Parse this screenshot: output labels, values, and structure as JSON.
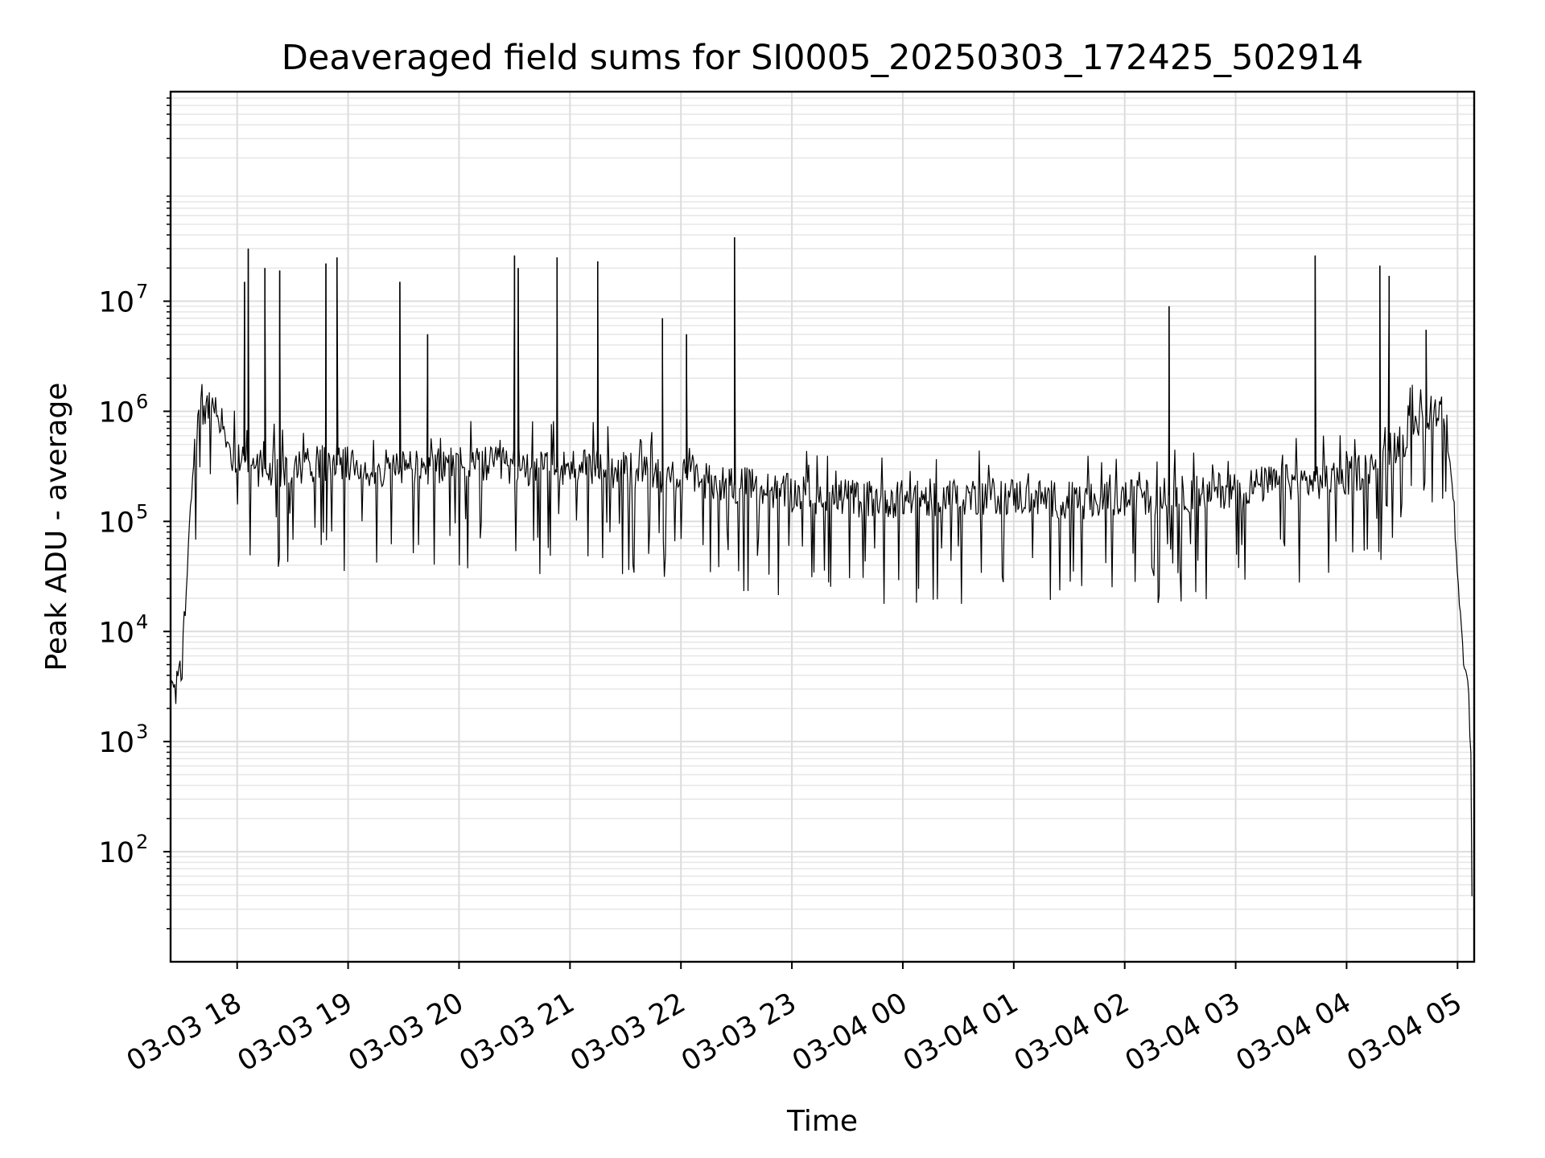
{
  "chart_data": {
    "type": "line",
    "title": "Deaveraged field sums for SI0005_20250303_172425_502914",
    "xlabel": "Time",
    "ylabel": "Peak ADU - average",
    "yscale": "log",
    "ylim": [
      10,
      800000000
    ],
    "xlim": [
      "2025-03-03 17:24",
      "2025-03-04 05:09"
    ],
    "grid": "major and minor",
    "series_color": "#000000",
    "x_ticks": [
      {
        "label": "03-03 18",
        "value": "2025-03-03 18:00"
      },
      {
        "label": "03-03 19",
        "value": "2025-03-03 19:00"
      },
      {
        "label": "03-03 20",
        "value": "2025-03-03 20:00"
      },
      {
        "label": "03-03 21",
        "value": "2025-03-03 21:00"
      },
      {
        "label": "03-03 22",
        "value": "2025-03-03 22:00"
      },
      {
        "label": "03-03 23",
        "value": "2025-03-03 23:00"
      },
      {
        "label": "03-04 00",
        "value": "2025-03-04 00:00"
      },
      {
        "label": "03-04 01",
        "value": "2025-03-04 01:00"
      },
      {
        "label": "03-04 02",
        "value": "2025-03-04 02:00"
      },
      {
        "label": "03-04 03",
        "value": "2025-03-04 03:00"
      },
      {
        "label": "03-04 04",
        "value": "2025-03-04 04:00"
      },
      {
        "label": "03-04 05",
        "value": "2025-03-04 05:00"
      }
    ],
    "y_ticks": [
      {
        "base": "10",
        "exp": "2",
        "value": 100
      },
      {
        "base": "10",
        "exp": "3",
        "value": 1000
      },
      {
        "base": "10",
        "exp": "4",
        "value": 10000
      },
      {
        "base": "10",
        "exp": "5",
        "value": 100000
      },
      {
        "base": "10",
        "exp": "6",
        "value": 1000000
      },
      {
        "base": "10",
        "exp": "7",
        "value": 10000000
      }
    ],
    "series": [
      {
        "x": [
          "2025-03-03 17:24",
          "2025-03-03 17:26",
          "2025-03-03 17:28",
          "2025-03-03 17:30",
          "2025-03-03 17:32",
          "2025-03-03 17:34",
          "2025-03-03 17:36",
          "2025-03-03 17:38",
          "2025-03-03 17:40",
          "2025-03-03 17:43",
          "2025-03-03 17:46",
          "2025-03-03 17:50",
          "2025-03-03 17:55",
          "2025-03-03 18:00",
          "2025-03-03 18:05",
          "2025-03-03 18:10",
          "2025-03-03 18:20",
          "2025-03-03 18:30",
          "2025-03-03 18:45",
          "2025-03-03 19:00",
          "2025-03-03 19:20",
          "2025-03-03 19:40",
          "2025-03-03 20:00",
          "2025-03-03 20:20",
          "2025-03-03 20:40",
          "2025-03-03 21:00",
          "2025-03-03 21:20",
          "2025-03-03 21:40",
          "2025-03-03 22:00",
          "2025-03-03 22:20",
          "2025-03-03 22:40",
          "2025-03-03 23:00",
          "2025-03-03 23:20",
          "2025-03-03 23:40",
          "2025-03-04 00:00",
          "2025-03-04 00:20",
          "2025-03-04 00:40",
          "2025-03-04 01:00",
          "2025-03-04 01:20",
          "2025-03-04 01:40",
          "2025-03-04 02:00",
          "2025-03-04 02:20",
          "2025-03-04 02:40",
          "2025-03-04 03:00",
          "2025-03-04 03:20",
          "2025-03-04 03:40",
          "2025-03-04 04:00",
          "2025-03-04 04:10",
          "2025-03-04 04:20",
          "2025-03-04 04:30",
          "2025-03-04 04:40",
          "2025-03-04 04:45",
          "2025-03-04 04:48",
          "2025-03-04 04:51",
          "2025-03-04 04:54",
          "2025-03-04 04:57",
          "2025-03-04 05:00",
          "2025-03-04 05:03",
          "2025-03-04 05:05",
          "2025-03-04 05:06",
          "2025-03-04 05:07",
          "2025-03-04 05:08"
        ],
        "y": [
          3000,
          3500,
          4000,
          6000,
          15000,
          80000,
          250000,
          600000,
          900000,
          1000000,
          1100000,
          800000,
          450000,
          400000,
          350000,
          300000,
          300000,
          320000,
          330000,
          320000,
          300000,
          310000,
          330000,
          320000,
          310000,
          310000,
          300000,
          270000,
          250000,
          230000,
          200000,
          180000,
          170000,
          160000,
          160000,
          165000,
          170000,
          170000,
          160000,
          150000,
          160000,
          170000,
          180000,
          200000,
          220000,
          230000,
          250000,
          300000,
          400000,
          550000,
          800000,
          1000000,
          1100000,
          1000000,
          700000,
          250000,
          30000,
          6000,
          3500,
          3000,
          2000,
          30
        ]
      }
    ],
    "spikes": {
      "x": [
        "2025-03-03 18:04",
        "2025-03-03 18:06",
        "2025-03-03 18:15",
        "2025-03-03 18:23",
        "2025-03-03 18:48",
        "2025-03-03 18:54",
        "2025-03-03 19:28",
        "2025-03-03 19:43",
        "2025-03-03 20:30",
        "2025-03-03 20:32",
        "2025-03-03 20:53",
        "2025-03-03 21:15",
        "2025-03-03 21:50",
        "2025-03-03 22:03",
        "2025-03-03 22:29",
        "2025-03-04 02:24",
        "2025-03-04 03:43",
        "2025-03-04 04:18",
        "2025-03-04 04:23",
        "2025-03-04 04:43"
      ],
      "y": [
        15000000,
        30000000,
        20000000,
        19000000,
        22000000,
        25000000,
        15000000,
        5000000,
        26000000,
        20000000,
        25000000,
        23000000,
        7000000,
        5000000,
        38000000,
        9000000,
        26000000,
        21000000,
        17000000,
        5500000
      ]
    }
  }
}
